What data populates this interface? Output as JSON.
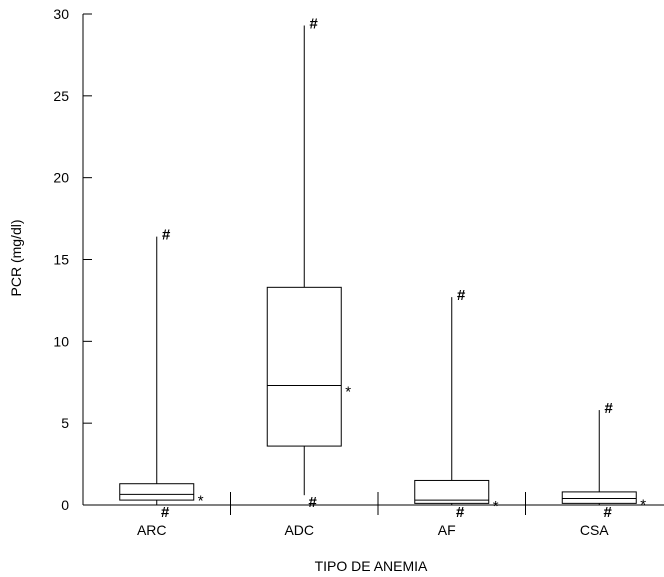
{
  "chart_data": {
    "type": "box",
    "xlabel": "TIPO DE ANEMIA",
    "ylabel": "PCR (mg/dl)",
    "ylim": [
      0,
      30
    ],
    "yticks": [
      0,
      5,
      10,
      15,
      20,
      25,
      30
    ],
    "grid": false,
    "series": [
      {
        "category": "ARC",
        "min": 0.0,
        "q1": 0.3,
        "median": 0.65,
        "q3": 1.3,
        "max": 16.4,
        "max_marker": "#",
        "min_marker": "#",
        "median_marker": "*"
      },
      {
        "category": "ADC",
        "min": 0.6,
        "q1": 3.6,
        "median": 7.3,
        "q3": 13.3,
        "max": 29.3,
        "max_marker": "#",
        "min_marker": "#",
        "median_marker": "*"
      },
      {
        "category": "AF",
        "min": 0.0,
        "q1": 0.1,
        "median": 0.3,
        "q3": 1.5,
        "max": 12.7,
        "max_marker": "#",
        "min_marker": "#",
        "median_marker": "*"
      },
      {
        "category": "CSA",
        "min": 0.0,
        "q1": 0.1,
        "median": 0.4,
        "q3": 0.8,
        "max": 5.8,
        "max_marker": "#",
        "min_marker": "#",
        "median_marker": "*"
      }
    ]
  }
}
